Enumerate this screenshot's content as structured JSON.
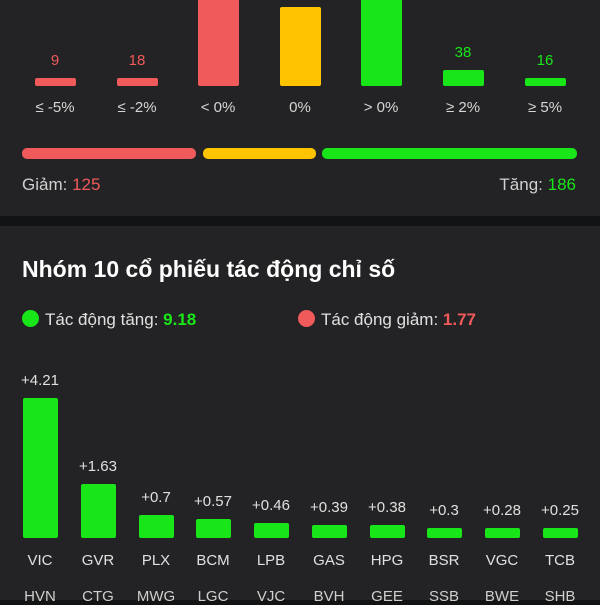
{
  "colors": {
    "down": "#f05a5a",
    "flat": "#ffc300",
    "up": "#19e619",
    "background": "#232325"
  },
  "distribution": {
    "bins": [
      {
        "label": "≤ -5%",
        "count": "9",
        "color": "#f05a5a"
      },
      {
        "label": "≤ -2%",
        "count": "18",
        "color": "#f05a5a"
      },
      {
        "label": "< 0%",
        "count": "",
        "color": "#f05a5a"
      },
      {
        "label": "0%",
        "count": "",
        "color": "#ffc300"
      },
      {
        "label": "> 0%",
        "count": "",
        "color": "#19e619"
      },
      {
        "label": "≥ 2%",
        "count": "38",
        "color": "#19e619"
      },
      {
        "label": "≥ 5%",
        "count": "16",
        "color": "#19e619"
      }
    ],
    "breadth": {
      "down_label": "Giảm:",
      "down_value": "125",
      "up_label": "Tăng:",
      "up_value": "186",
      "segments": [
        {
          "name": "down",
          "color": "#f05a5a"
        },
        {
          "name": "flat",
          "color": "#ffc300"
        },
        {
          "name": "up",
          "color": "#19e619"
        }
      ]
    }
  },
  "impact": {
    "title": "Nhóm 10 cổ phiếu tác động chỉ số",
    "legend_up_label": "Tác động tăng:",
    "legend_up_value": "9.18",
    "legend_down_label": "Tác động giảm:",
    "legend_down_value": "1.77",
    "bars": [
      {
        "ticker": "VIC",
        "value": "+4.21"
      },
      {
        "ticker": "GVR",
        "value": "+1.63"
      },
      {
        "ticker": "PLX",
        "value": "+0.7"
      },
      {
        "ticker": "BCM",
        "value": "+0.57"
      },
      {
        "ticker": "LPB",
        "value": "+0.46"
      },
      {
        "ticker": "GAS",
        "value": "+0.39"
      },
      {
        "ticker": "HPG",
        "value": "+0.38"
      },
      {
        "ticker": "BSR",
        "value": "+0.3"
      },
      {
        "ticker": "VGC",
        "value": "+0.28"
      },
      {
        "ticker": "TCB",
        "value": "+0.25"
      }
    ],
    "next_row_tickers": [
      "HVN",
      "CTG",
      "MWG",
      "LGC",
      "VJC",
      "BVH",
      "GEE",
      "SSB",
      "BWE",
      "SHB"
    ]
  }
}
